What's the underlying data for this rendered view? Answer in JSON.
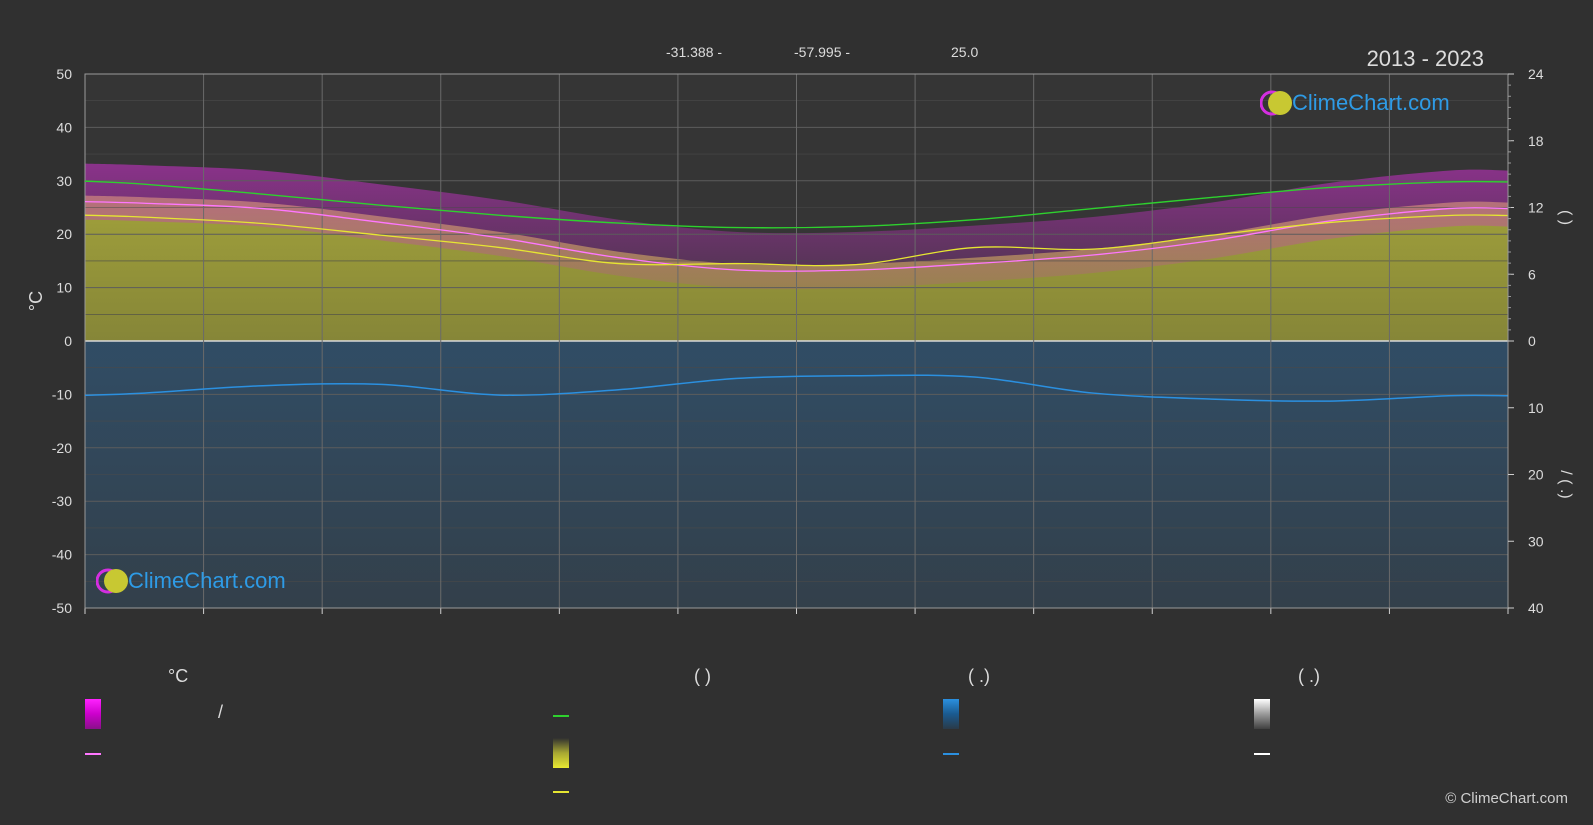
{
  "header": {
    "coords": [
      "-31.388 -",
      "-57.995 -",
      "25.0"
    ],
    "years": "2013 - 2023"
  },
  "brand": {
    "logo_text": "ClimeChart.com",
    "copyright": "© ClimeChart.com"
  },
  "legend": {
    "col1_title": "°C",
    "col1_row1_sep": "/",
    "col2_title": "(          )",
    "col3_title": "(   .)",
    "col4_title": "(   .)"
  },
  "right_axis_labels": {
    "upper": "(          )",
    "lower": "/       (   .)"
  },
  "colors": {
    "daylight": "#2ed12e",
    "sunshine": "#e6e632",
    "max_temp": "#ff77ff",
    "precip": "#2b90e0",
    "snow": "#ffffff",
    "temp_band": "#cc22cc",
    "background": "#303030"
  },
  "chart_data": {
    "type": "line",
    "ylabel": "°C",
    "ylim": [
      -50,
      50
    ],
    "yticks": [
      50,
      40,
      30,
      20,
      10,
      0,
      -10,
      -20,
      -30,
      -40,
      -50
    ],
    "right_ylim_top": [
      0,
      24
    ],
    "right_yticks_top": [
      24,
      18,
      12,
      6,
      0
    ],
    "right_ylim_bottom": [
      0,
      40
    ],
    "right_yticks_bottom": [
      0,
      10,
      20,
      30,
      40
    ],
    "x_month_ticks": 13,
    "series": [
      {
        "key": "daylight",
        "axis": "right_top",
        "x": [
          0.5,
          1.5,
          2.5,
          3.5,
          4.5,
          5.5,
          6.5,
          7.5,
          8.5,
          9.5,
          10.5,
          11.5
        ],
        "values": [
          14.1,
          13.2,
          12.2,
          11.3,
          10.6,
          10.2,
          10.3,
          10.9,
          11.9,
          12.9,
          13.8,
          14.3
        ]
      },
      {
        "key": "sunshine",
        "axis": "left",
        "x": [
          0.5,
          1.5,
          2.5,
          3.5,
          4.5,
          5.5,
          6.5,
          7.5,
          8.5,
          9.5,
          10.5,
          11.5
        ],
        "values": [
          23.2,
          22.0,
          19.8,
          17.5,
          14.5,
          14.5,
          14.3,
          17.5,
          17.2,
          19.8,
          22.2,
          23.5
        ]
      },
      {
        "key": "max_temp",
        "axis": "left",
        "x": [
          0.5,
          1.5,
          2.5,
          3.5,
          4.5,
          5.5,
          6.5,
          7.5,
          8.5,
          9.5,
          10.5,
          11.5
        ],
        "values": [
          25.8,
          24.8,
          22.2,
          19.3,
          15.6,
          13.3,
          13.3,
          14.5,
          16.1,
          18.8,
          22.5,
          24.8
        ]
      },
      {
        "key": "precip",
        "axis": "right_bottom",
        "x": [
          0.5,
          1.5,
          2.5,
          3.5,
          4.5,
          5.5,
          6.5,
          7.5,
          8.5,
          9.5,
          10.5,
          11.5
        ],
        "values": [
          7.8,
          6.7,
          6.5,
          8.1,
          7.3,
          5.6,
          5.2,
          5.4,
          7.8,
          8.7,
          9.0,
          8.2
        ]
      }
    ]
  }
}
